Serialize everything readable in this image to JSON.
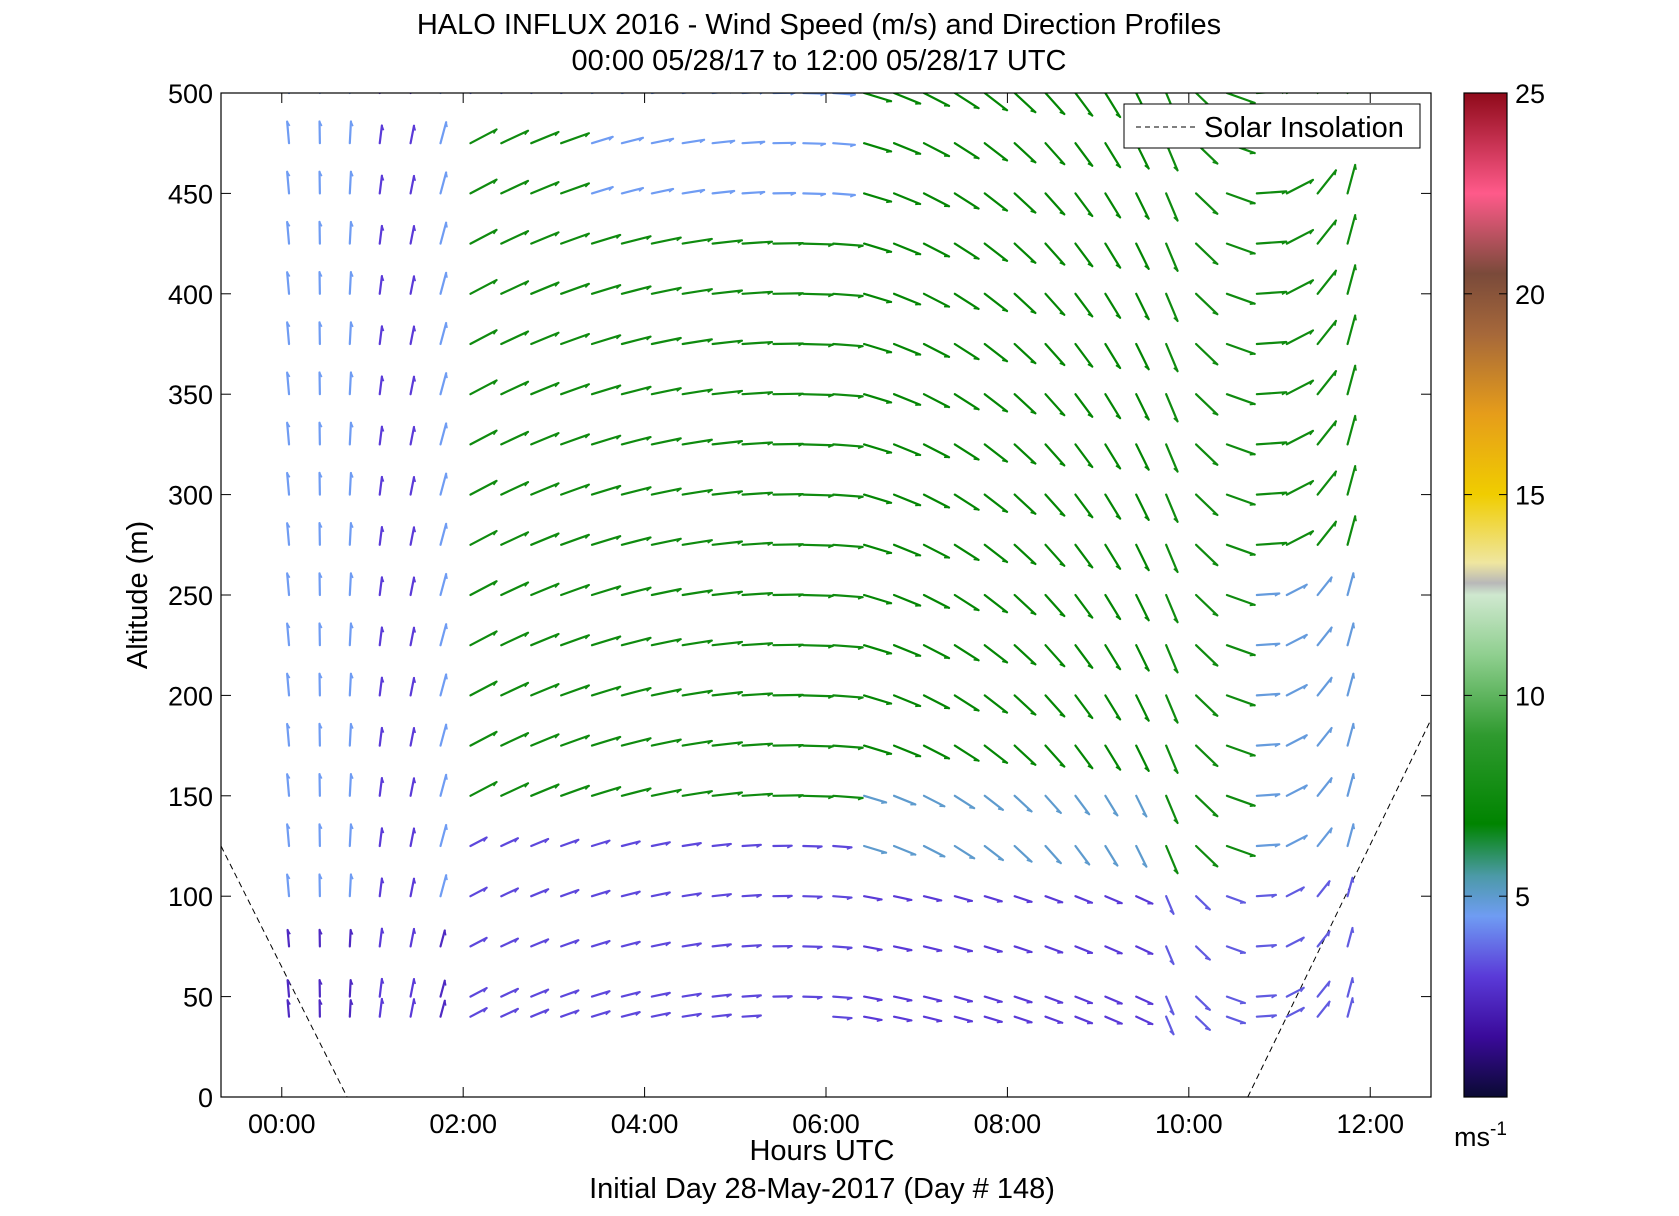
{
  "chart_data": {
    "type": "wind_barb_profile",
    "title": "HALO INFLUX 2016 - Wind Speed (m/s) and Direction Profiles",
    "subtitle": "00:00 05/28/17 to 12:00 05/28/17  UTC",
    "xlabel": "Hours UTC",
    "xlabel2": "Initial Day 28-May-2017 (Day # 148)",
    "ylabel": "Altitude (m)",
    "xlim": [
      -0.67,
      12.67
    ],
    "ylim": [
      0,
      500
    ],
    "x_ticks": [
      {
        "v": 0,
        "label": "00:00"
      },
      {
        "v": 2,
        "label": "02:00"
      },
      {
        "v": 4,
        "label": "04:00"
      },
      {
        "v": 6,
        "label": "06:00"
      },
      {
        "v": 8,
        "label": "08:00"
      },
      {
        "v": 10,
        "label": "10:00"
      },
      {
        "v": 12,
        "label": "12:00"
      }
    ],
    "y_ticks": [
      0,
      50,
      100,
      150,
      200,
      250,
      300,
      350,
      400,
      450,
      500
    ],
    "legend": {
      "label": "Solar Insolation",
      "position": "top-right"
    },
    "colorbar": {
      "min": 0,
      "max": 25,
      "ticks": [
        5,
        10,
        15,
        20,
        25
      ],
      "unit": "ms",
      "unit_exp": "-1"
    },
    "solar_insolation": [
      {
        "x": -0.67,
        "y": 125
      },
      {
        "x": 0.72,
        "y": 0
      },
      {
        "x": 10.65,
        "y": 0
      },
      {
        "x": 12.67,
        "y": 188
      }
    ],
    "wind_columns": {
      "times": [
        0.08,
        0.42,
        0.75,
        1.08,
        1.42,
        1.75,
        2.08,
        2.42,
        2.75,
        3.08,
        3.42,
        3.75,
        4.08,
        4.42,
        4.75,
        5.08,
        5.42,
        5.75,
        6.08,
        6.42,
        6.75,
        7.08,
        7.42,
        7.75,
        8.08,
        8.42,
        8.75,
        9.08,
        9.42,
        9.75,
        10.08,
        10.42,
        10.75,
        11.08,
        11.42,
        11.75
      ],
      "altitudes": [
        40,
        50,
        75,
        100,
        125,
        150,
        175,
        200,
        225,
        250,
        275,
        300,
        325,
        350,
        375,
        400,
        425,
        450,
        475,
        500
      ]
    }
  }
}
